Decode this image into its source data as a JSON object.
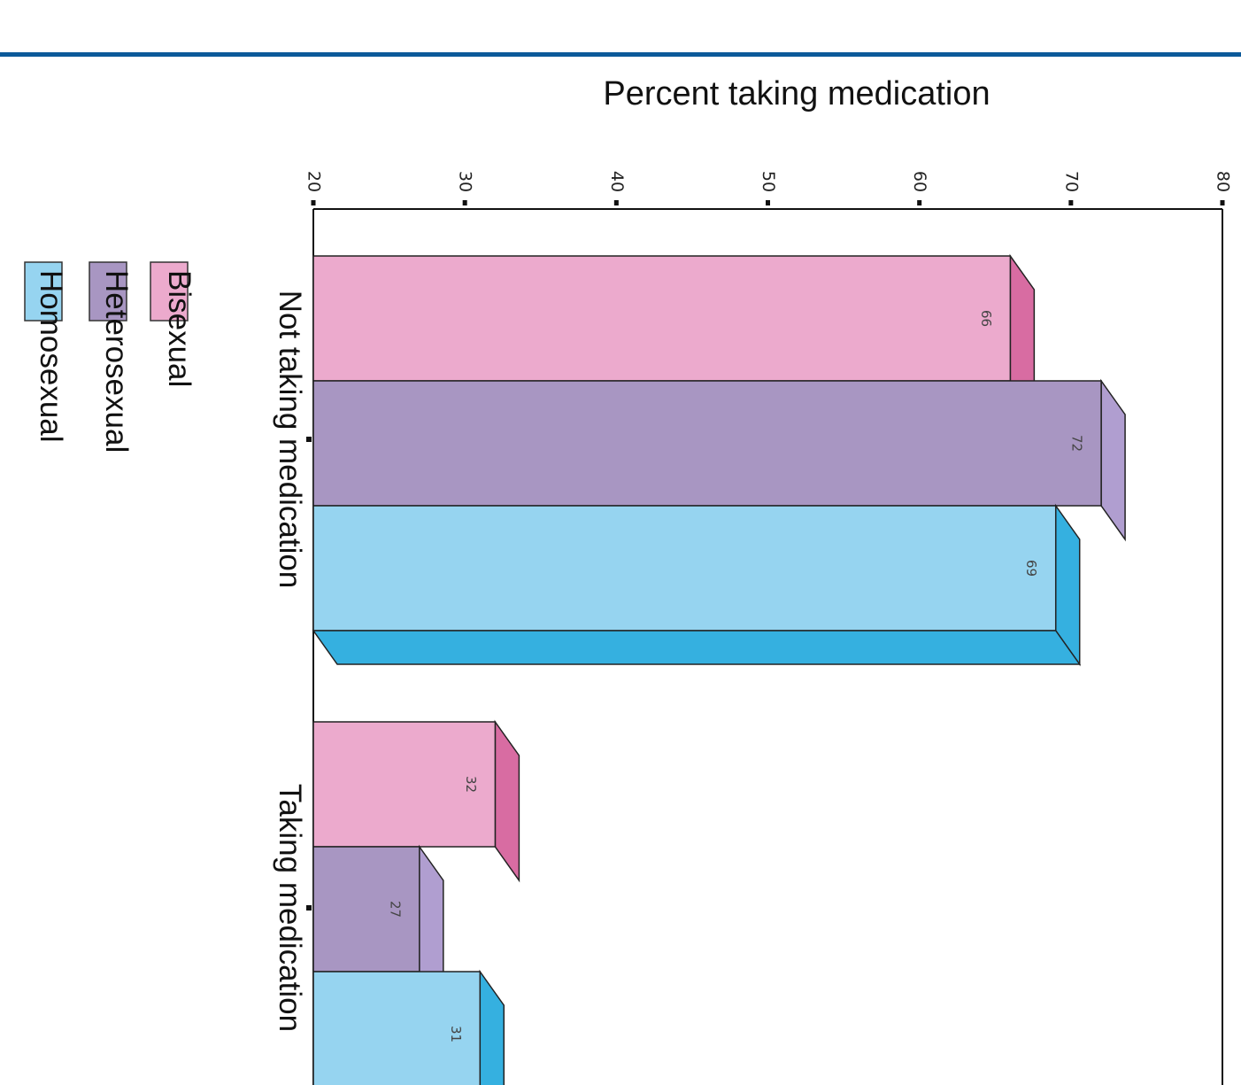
{
  "chart_data": {
    "type": "bar",
    "orientation": "rotated-90-clockwise",
    "ylabel": "Percent taking medication",
    "ylim": [
      20,
      80
    ],
    "yticks": [
      20,
      30,
      40,
      50,
      60,
      70,
      80
    ],
    "categories": [
      "Not taking medication",
      "Taking medication"
    ],
    "series": [
      {
        "name": "Bisexual",
        "values": [
          66,
          32
        ],
        "color": "#ecaacd",
        "side_color": "#d86ca2"
      },
      {
        "name": "Heterosexual",
        "values": [
          72,
          27
        ],
        "color": "#a896c2",
        "side_color": "#b09ed0"
      },
      {
        "name": "Homosexual",
        "values": [
          69,
          31
        ],
        "color": "#96d4f0",
        "side_color": "#35b0e0"
      }
    ],
    "legend_position": "left"
  },
  "colors": {
    "rule": "#0c5a9a"
  }
}
